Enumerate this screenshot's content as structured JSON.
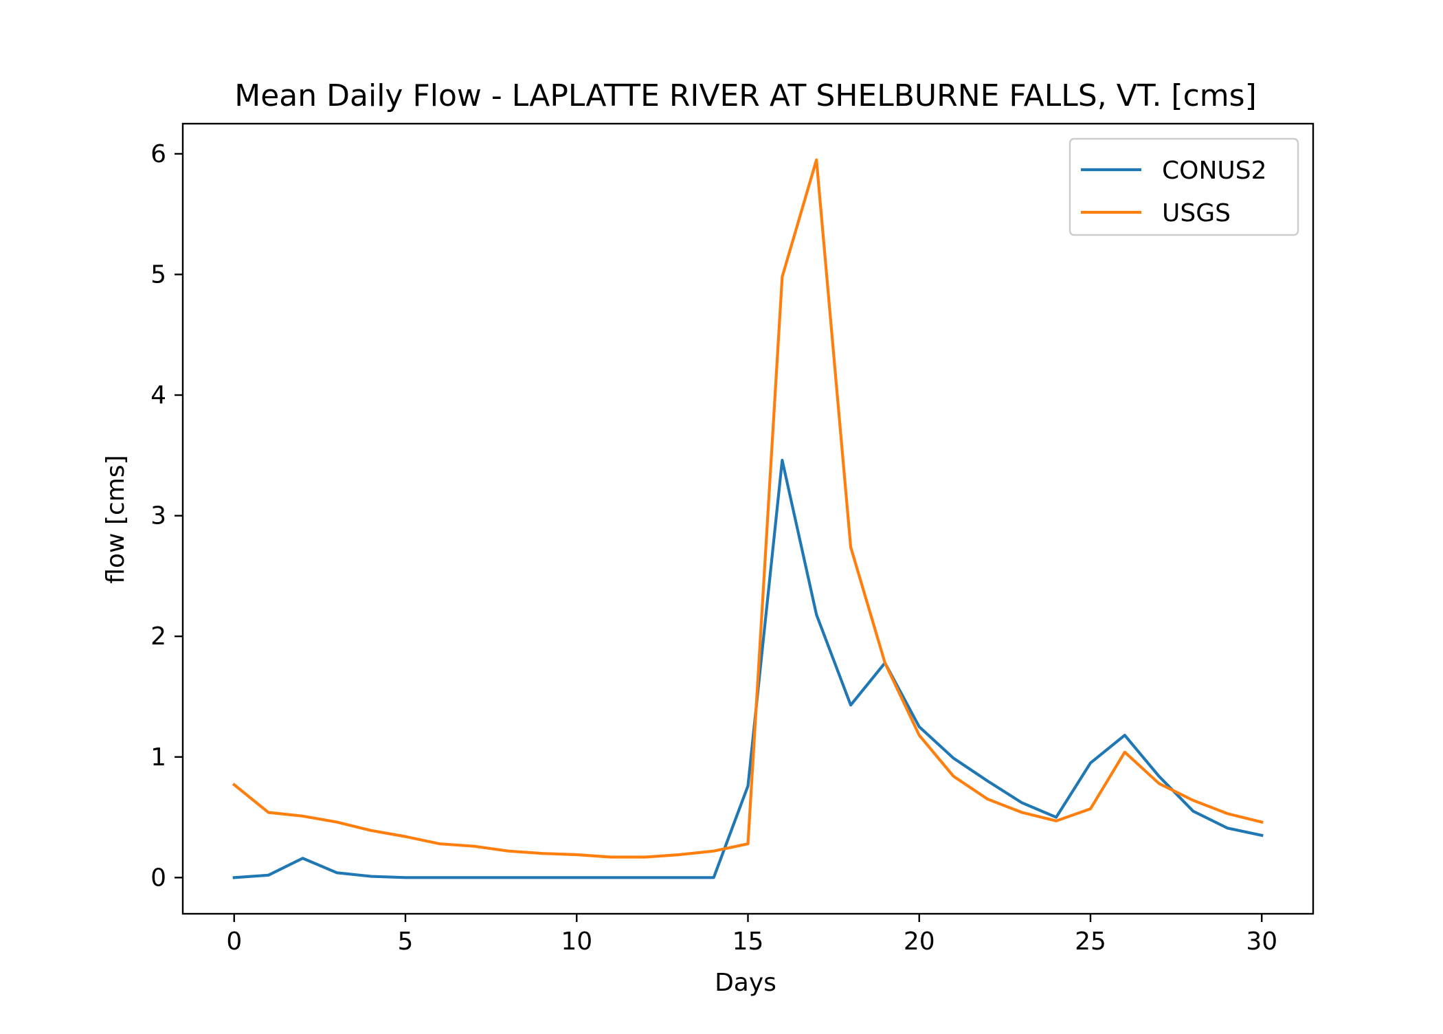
{
  "chart_data": {
    "type": "line",
    "title": "Mean Daily Flow - LAPLATTE RIVER AT SHELBURNE FALLS, VT. [cms]",
    "xlabel": "Days",
    "ylabel": "flow [cms]",
    "xlim": [
      -1.5,
      31.5
    ],
    "ylim": [
      -0.3,
      6.25
    ],
    "xticks": [
      0,
      5,
      10,
      15,
      20,
      25,
      30
    ],
    "yticks": [
      0,
      1,
      2,
      3,
      4,
      5,
      6
    ],
    "grid": false,
    "legend": "top-right",
    "x": [
      0,
      1,
      2,
      3,
      4,
      5,
      6,
      7,
      8,
      9,
      10,
      11,
      12,
      13,
      14,
      15,
      16,
      17,
      18,
      19,
      20,
      21,
      22,
      23,
      24,
      25,
      26,
      27,
      28,
      29,
      30
    ],
    "series": [
      {
        "name": "CONUS2",
        "color": "#1f77b4",
        "values": [
          0.0,
          0.02,
          0.16,
          0.04,
          0.01,
          0.0,
          0.0,
          0.0,
          0.0,
          0.0,
          0.0,
          0.0,
          0.0,
          0.0,
          0.0,
          0.76,
          3.46,
          2.18,
          1.43,
          1.78,
          1.25,
          0.99,
          0.8,
          0.62,
          0.5,
          0.95,
          1.18,
          0.84,
          0.55,
          0.41,
          0.35
        ]
      },
      {
        "name": "USGS",
        "color": "#ff7f0e",
        "values": [
          0.77,
          0.54,
          0.51,
          0.46,
          0.39,
          0.34,
          0.28,
          0.26,
          0.22,
          0.2,
          0.19,
          0.17,
          0.17,
          0.19,
          0.22,
          0.28,
          4.98,
          5.95,
          2.74,
          1.78,
          1.18,
          0.84,
          0.65,
          0.54,
          0.47,
          0.57,
          1.04,
          0.78,
          0.64,
          0.53,
          0.46
        ]
      }
    ]
  }
}
